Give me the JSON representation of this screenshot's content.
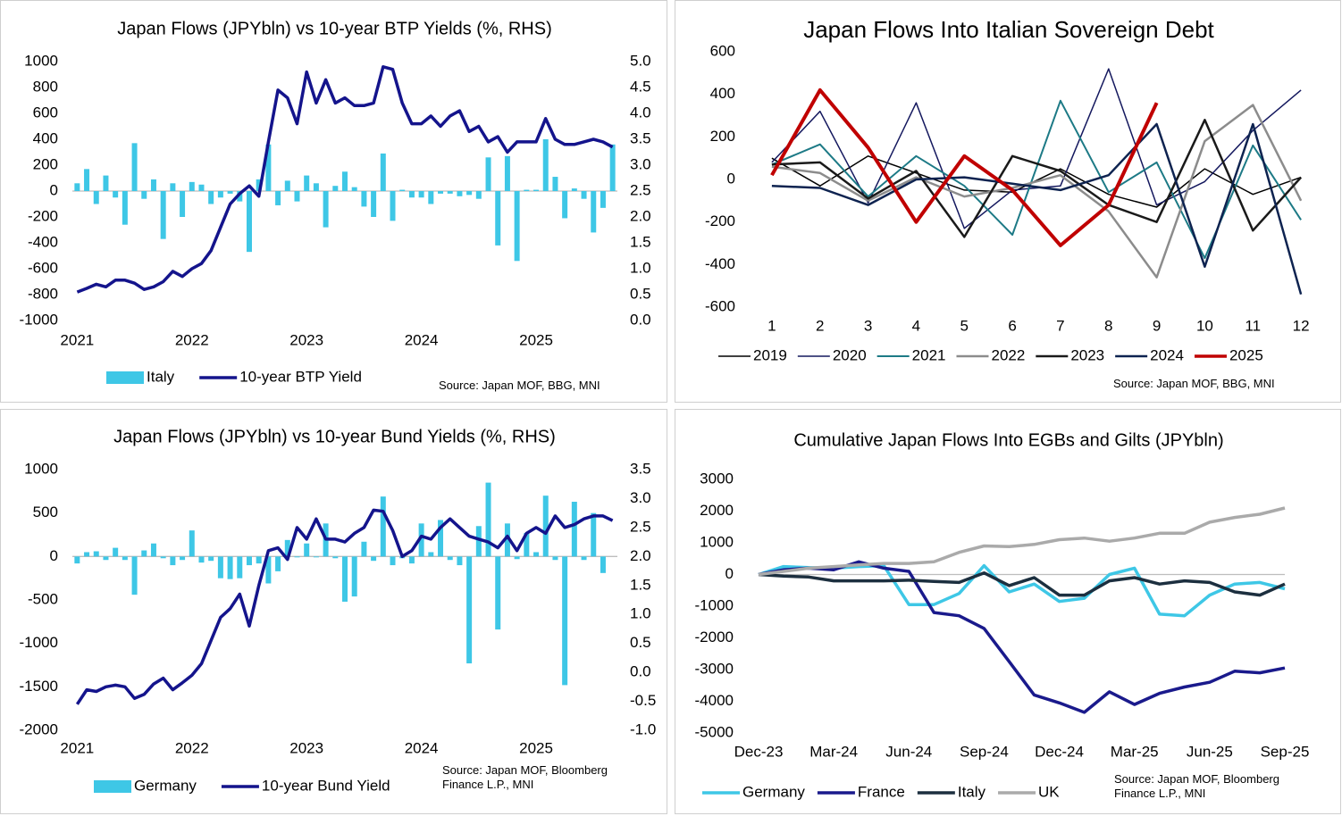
{
  "chart_data": [
    {
      "type": "bar_line",
      "title": "Japan Flows (JPYbln) vs 10-year BTP Yields (%, RHS)",
      "source": "Source: Japan MOF, BBG, MNI",
      "categories": [
        "2021",
        null,
        null,
        null,
        null,
        null,
        null,
        null,
        null,
        null,
        null,
        null,
        "2022",
        null,
        null,
        null,
        null,
        null,
        null,
        null,
        null,
        null,
        null,
        null,
        "2023",
        null,
        null,
        null,
        null,
        null,
        null,
        null,
        null,
        null,
        null,
        null,
        "2024",
        null,
        null,
        null,
        null,
        null,
        null,
        null,
        null,
        null,
        null,
        null,
        "2025",
        null,
        null,
        null,
        null,
        null,
        null,
        null,
        null
      ],
      "series": [
        {
          "name": "Italy",
          "type": "bar",
          "color": "#3ec7e6",
          "values": [
            60,
            170,
            -100,
            120,
            -50,
            -260,
            370,
            -60,
            90,
            -370,
            60,
            -200,
            70,
            50,
            -100,
            -50,
            -20,
            -80,
            -470,
            90,
            360,
            -110,
            80,
            -80,
            120,
            60,
            -280,
            40,
            150,
            30,
            -120,
            -200,
            290,
            -230,
            10,
            -50,
            -50,
            -100,
            -20,
            -20,
            -40,
            -30,
            -60,
            260,
            -420,
            270,
            -540,
            10,
            10,
            400,
            110,
            -210,
            20,
            -60,
            -320,
            -130,
            360
          ]
        },
        {
          "name": "10-year BTP Yield",
          "type": "line",
          "axis": "y2",
          "color": "#14148c",
          "line_width": 3.5,
          "values": [
            0.55,
            0.62,
            0.7,
            0.65,
            0.78,
            0.78,
            0.72,
            0.6,
            0.65,
            0.75,
            0.95,
            0.85,
            1.0,
            1.1,
            1.35,
            1.8,
            2.25,
            2.45,
            2.6,
            2.4,
            3.45,
            4.45,
            4.3,
            3.8,
            4.8,
            4.2,
            4.65,
            4.2,
            4.3,
            4.15,
            4.15,
            4.2,
            4.9,
            4.85,
            4.2,
            3.8,
            3.8,
            3.95,
            3.75,
            3.95,
            4.05,
            3.65,
            3.75,
            3.45,
            3.55,
            3.25,
            3.45,
            3.45,
            3.45,
            3.9,
            3.5,
            3.4,
            3.4,
            3.45,
            3.5,
            3.45,
            3.35
          ]
        }
      ],
      "ylim": [
        -1000,
        1000
      ],
      "yticks": [
        -1000,
        -800,
        -600,
        -400,
        -200,
        0,
        200,
        400,
        600,
        800,
        1000
      ],
      "y2lim": [
        0,
        5
      ],
      "y2ticks": [
        {
          "value": 0,
          "label": "0.0"
        },
        0.5,
        {
          "value": 1,
          "label": "1.0"
        },
        1.5,
        {
          "value": 2,
          "label": "2.0"
        },
        2.5,
        {
          "value": 3,
          "label": "3.0"
        },
        3.5,
        {
          "value": 4,
          "label": "4.0"
        },
        4.5,
        {
          "value": 5,
          "label": "5.0"
        }
      ],
      "legend": "bottom"
    },
    {
      "type": "line",
      "title": "Japan Flows Into Italian Sovereign Debt",
      "source": "Source: Japan MOF, BBG, MNI",
      "categories": [
        "1",
        "2",
        "3",
        "4",
        "5",
        "6",
        "7",
        "8",
        "9",
        "10",
        "11",
        "12"
      ],
      "series": [
        {
          "name": "2019",
          "color": "#000000",
          "line_width": 1.5,
          "values": [
            100,
            -30,
            110,
            30,
            -50,
            -60,
            50,
            -70,
            -130,
            50,
            -70,
            10
          ]
        },
        {
          "name": "2020",
          "color": "#14185e",
          "line_width": 1.5,
          "values": [
            80,
            320,
            -110,
            360,
            -230,
            -50,
            -30,
            520,
            -120,
            -10,
            230,
            420
          ]
        },
        {
          "name": "2021",
          "color": "#1d7a86",
          "line_width": 2,
          "values": [
            70,
            165,
            -80,
            110,
            -30,
            -260,
            370,
            -60,
            80,
            -370,
            160,
            -190
          ]
        },
        {
          "name": "2022",
          "color": "#8c8c8c",
          "line_width": 2.5,
          "values": [
            60,
            30,
            -100,
            10,
            -80,
            -40,
            20,
            -150,
            -460,
            180,
            350,
            -100
          ]
        },
        {
          "name": "2023",
          "color": "#1a1a1a",
          "line_width": 2.5,
          "values": [
            70,
            80,
            -90,
            40,
            -270,
            110,
            40,
            -120,
            -200,
            280,
            -240,
            10
          ]
        },
        {
          "name": "2024",
          "color": "#0e2350",
          "line_width": 2.5,
          "values": [
            -30,
            -40,
            -120,
            0,
            10,
            -20,
            -50,
            20,
            260,
            -410,
            260,
            -540
          ]
        },
        {
          "name": "2025",
          "color": "#c00000",
          "line_width": 4,
          "values": [
            20,
            420,
            150,
            -200,
            110,
            -50,
            -310,
            -120,
            360,
            null,
            null,
            null
          ]
        }
      ],
      "ylim": [
        -600,
        600
      ],
      "yticks": [
        -600,
        -400,
        -200,
        0,
        200,
        400,
        600
      ],
      "legend": "bottom"
    },
    {
      "type": "bar_line",
      "title": "Japan Flows (JPYbln) vs 10-year Bund Yields (%, RHS)",
      "source": "Source: Japan MOF, Bloomberg Finance L.P., MNI",
      "categories": [
        "2021",
        null,
        null,
        null,
        null,
        null,
        null,
        null,
        null,
        null,
        null,
        null,
        "2022",
        null,
        null,
        null,
        null,
        null,
        null,
        null,
        null,
        null,
        null,
        null,
        "2023",
        null,
        null,
        null,
        null,
        null,
        null,
        null,
        null,
        null,
        null,
        null,
        "2024",
        null,
        null,
        null,
        null,
        null,
        null,
        null,
        null,
        null,
        null,
        null,
        "2025",
        null,
        null,
        null,
        null,
        null,
        null,
        null,
        null
      ],
      "series": [
        {
          "name": "Germany",
          "type": "bar",
          "color": "#3ec7e6",
          "values": [
            -80,
            50,
            60,
            -40,
            100,
            -40,
            -440,
            70,
            150,
            -20,
            -100,
            -40,
            300,
            -70,
            -50,
            -250,
            -260,
            -250,
            -100,
            -80,
            -310,
            -170,
            190,
            -10,
            150,
            -10,
            380,
            -20,
            -520,
            -460,
            170,
            -50,
            690,
            -100,
            -20,
            -80,
            380,
            50,
            420,
            -40,
            -100,
            -1230,
            350,
            850,
            -840,
            380,
            -30,
            270,
            50,
            700,
            -40,
            -1480,
            630,
            -40,
            500,
            -190,
            0
          ]
        },
        {
          "name": "10-year Bund Yield",
          "type": "line",
          "axis": "y2",
          "color": "#14148c",
          "line_width": 3.5,
          "values": [
            -0.55,
            -0.3,
            -0.33,
            -0.25,
            -0.22,
            -0.25,
            -0.45,
            -0.38,
            -0.2,
            -0.1,
            -0.3,
            -0.18,
            -0.05,
            0.15,
            0.55,
            0.95,
            1.1,
            1.35,
            0.8,
            1.5,
            2.1,
            2.15,
            1.95,
            2.5,
            2.3,
            2.65,
            2.3,
            2.3,
            2.25,
            2.4,
            2.5,
            2.8,
            2.78,
            2.45,
            2.0,
            2.1,
            2.35,
            2.3,
            2.5,
            2.65,
            2.5,
            2.35,
            2.3,
            2.25,
            2.15,
            2.35,
            2.1,
            2.4,
            2.5,
            2.4,
            2.7,
            2.5,
            2.55,
            2.65,
            2.7,
            2.7,
            2.62
          ]
        }
      ],
      "ylim": [
        -2000,
        1000
      ],
      "yticks": [
        -2000,
        -1500,
        -1000,
        -500,
        0,
        500,
        1000
      ],
      "y2lim": [
        -1,
        3.5
      ],
      "y2ticks": [
        {
          "value": -1,
          "label": "-1.0"
        },
        -0.5,
        {
          "value": 0,
          "label": "0.0"
        },
        0.5,
        {
          "value": 1,
          "label": "1.0"
        },
        1.5,
        {
          "value": 2,
          "label": "2.0"
        },
        2.5,
        {
          "value": 3,
          "label": "3.0"
        },
        3.5
      ],
      "legend": "bottom"
    },
    {
      "type": "line",
      "title": "Cumulative  Japan Flows Into EGBs and Gilts (JPYbln)",
      "source": "Source: Japan MOF, Bloomberg Finance L.P., MNI",
      "categories": [
        "Dec-23",
        null,
        null,
        "Mar-24",
        null,
        null,
        "Jun-24",
        null,
        null,
        "Sep-24",
        null,
        null,
        "Dec-24",
        null,
        null,
        "Mar-25",
        null,
        null,
        "Jun-25",
        null,
        null,
        "Sep-25"
      ],
      "series": [
        {
          "name": "Germany",
          "color": "#3ec7e6",
          "line_width": 3.5,
          "values": [
            0,
            250,
            220,
            200,
            250,
            280,
            -950,
            -950,
            -600,
            280,
            -550,
            -300,
            -850,
            -750,
            0,
            200,
            -1250,
            -1300,
            -650,
            -300,
            -250,
            -450
          ]
        },
        {
          "name": "France",
          "color": "#1a1a8c",
          "line_width": 3.5,
          "values": [
            0,
            150,
            200,
            150,
            400,
            200,
            100,
            -1200,
            -1300,
            -1700,
            -2750,
            -3800,
            -4050,
            -4350,
            -3700,
            -4100,
            -3750,
            -3550,
            -3400,
            -3050,
            -3100,
            -2950
          ]
        },
        {
          "name": "Italy",
          "color": "#1c2f3f",
          "line_width": 3.5,
          "values": [
            0,
            -50,
            -80,
            -200,
            -200,
            -200,
            -180,
            -220,
            -250,
            50,
            -350,
            -100,
            -650,
            -650,
            -200,
            -100,
            -300,
            -200,
            -250,
            -550,
            -650,
            -300
          ]
        },
        {
          "name": "UK",
          "color": "#aaaaaa",
          "line_width": 3.5,
          "values": [
            0,
            100,
            200,
            250,
            300,
            350,
            350,
            400,
            700,
            900,
            880,
            950,
            1100,
            1150,
            1050,
            1150,
            1300,
            1300,
            1650,
            1800,
            1900,
            2100
          ]
        }
      ],
      "ylim": [
        -5000,
        3000
      ],
      "yticks": [
        -5000,
        -4000,
        -3000,
        -2000,
        -1000,
        0,
        1000,
        2000,
        3000
      ],
      "legend": "bottom"
    }
  ]
}
